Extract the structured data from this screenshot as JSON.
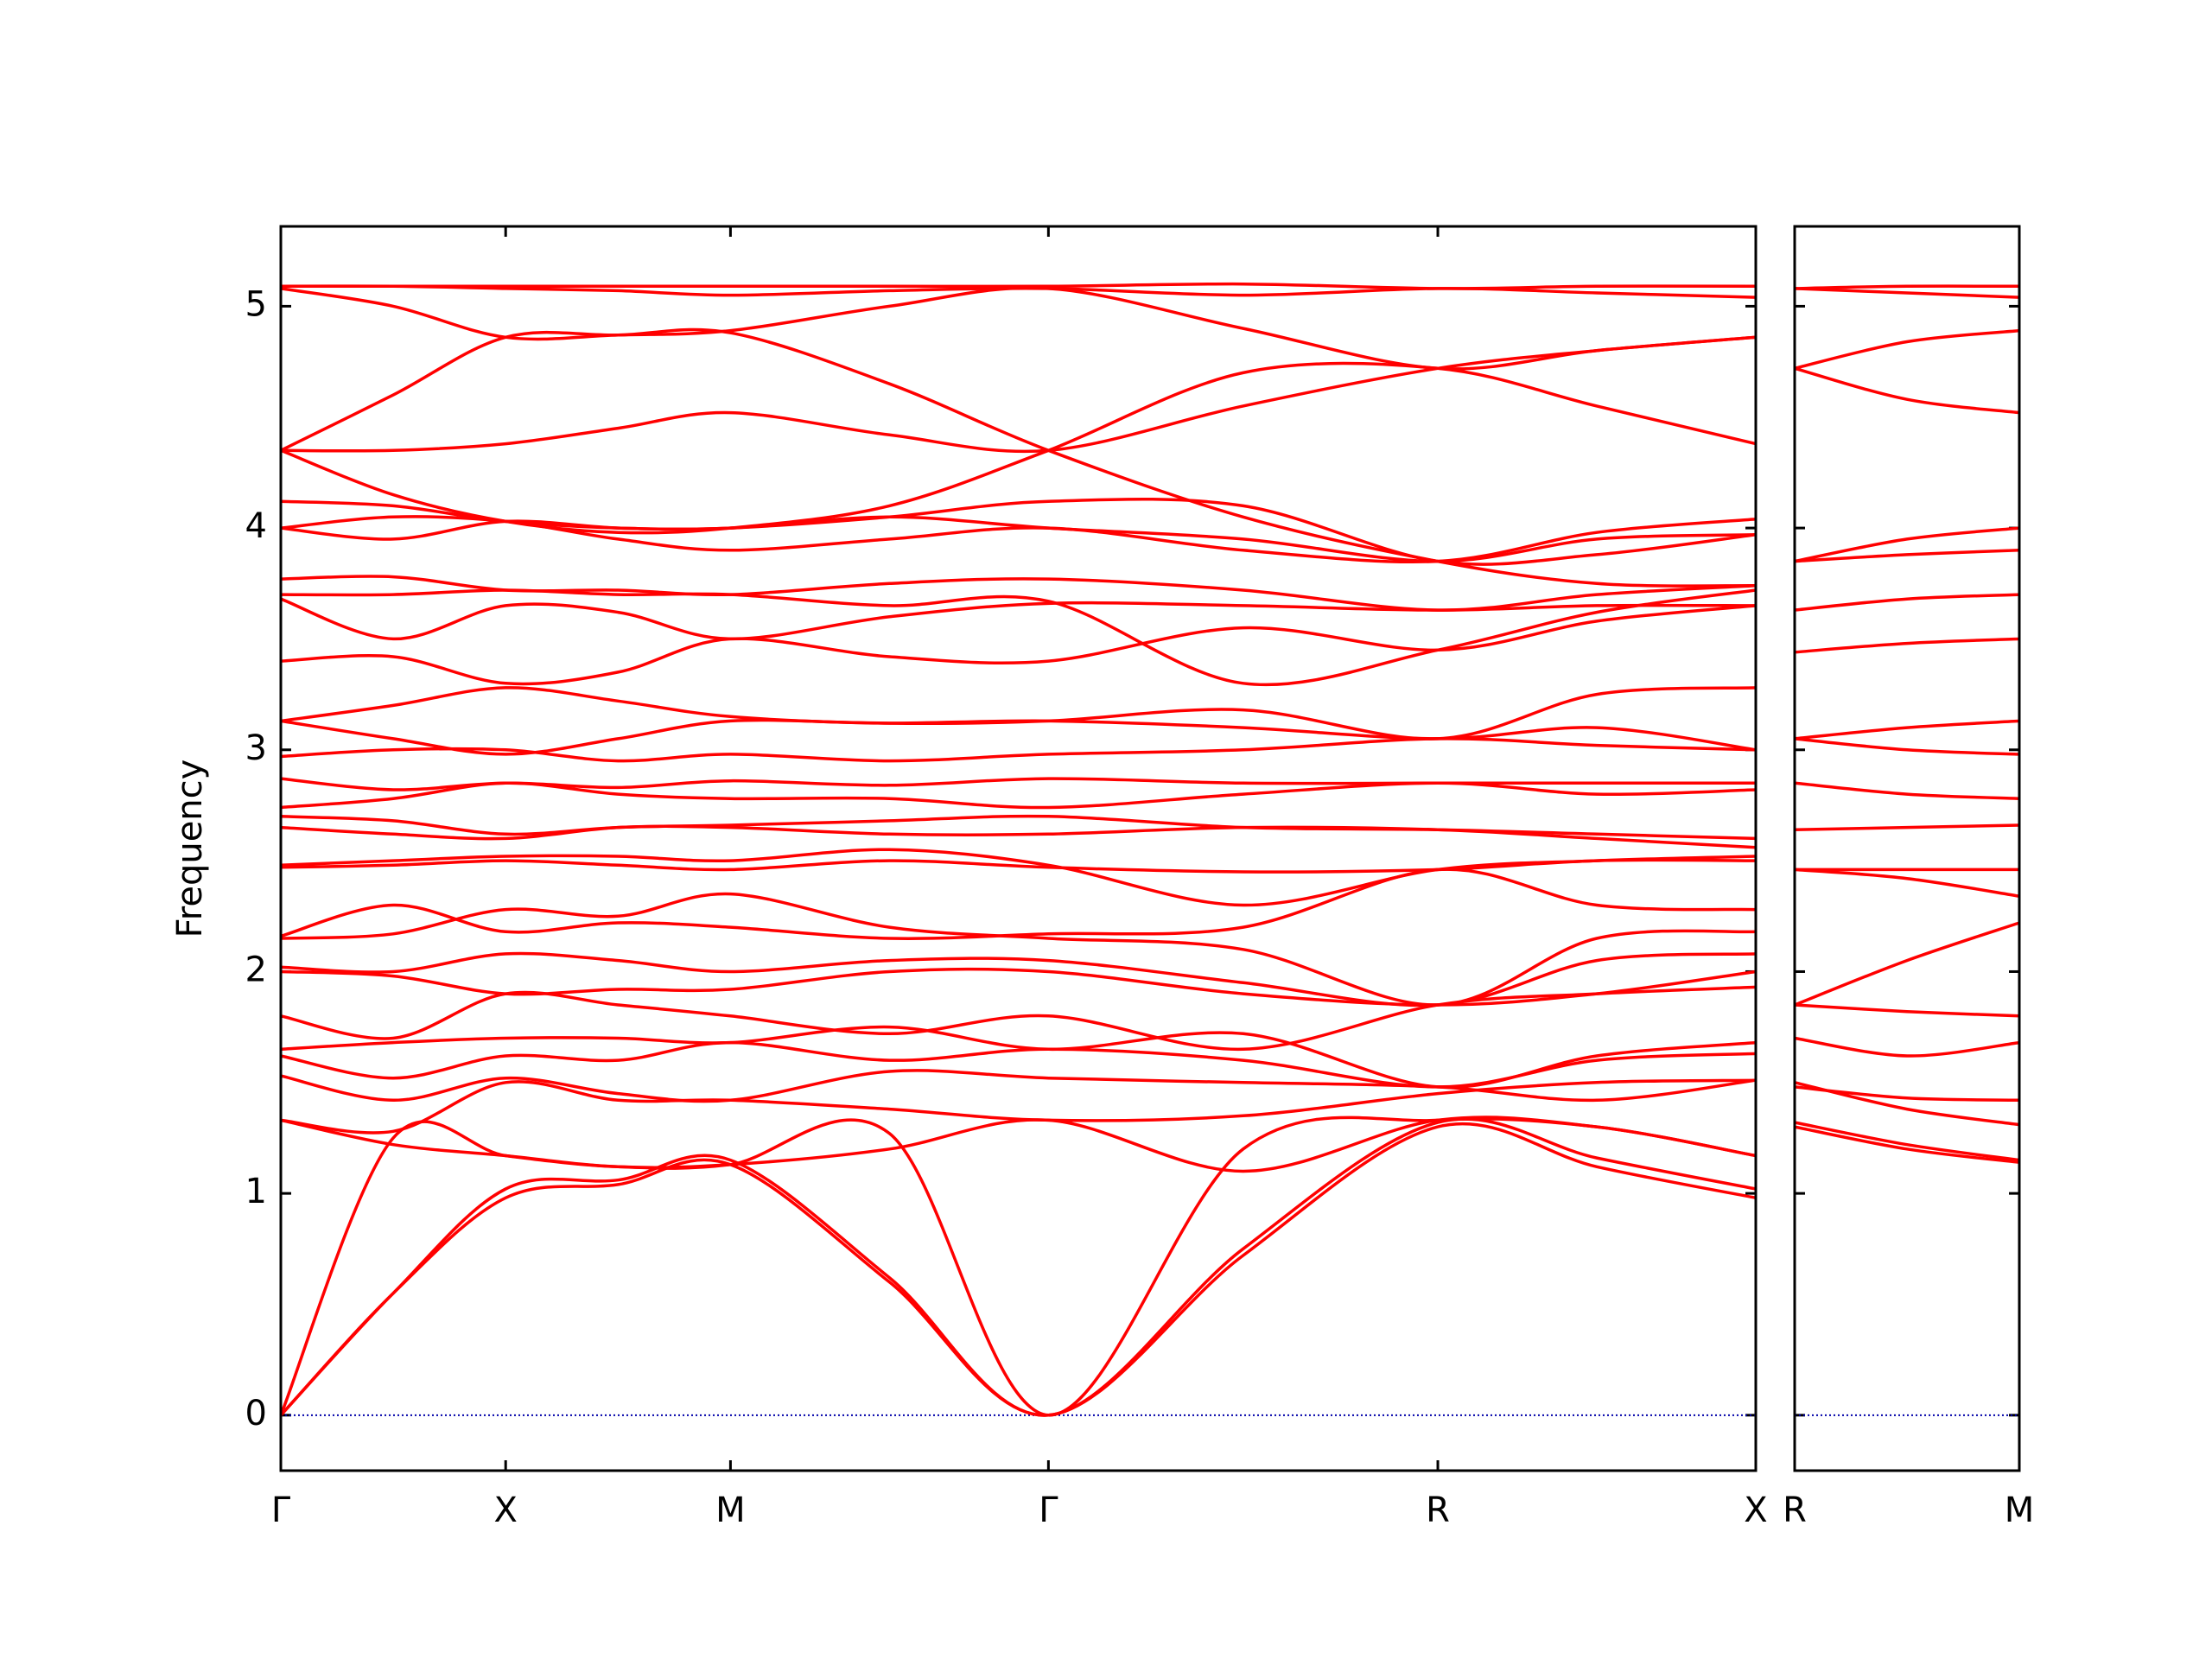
{
  "chart_data": [
    {
      "type": "line",
      "ylabel": "Frequency",
      "x": [
        0,
        0.25,
        0.5,
        0.75,
        1.0,
        1.3536,
        1.7071,
        2.1401,
        2.5731,
        2.9267,
        3.2802
      ],
      "xlim": [
        0,
        3.2802
      ],
      "xticks": [
        {
          "value": 0,
          "label": "Γ"
        },
        {
          "value": 0.5,
          "label": "X"
        },
        {
          "value": 1.0,
          "label": "M"
        },
        {
          "value": 1.7071,
          "label": "Γ"
        },
        {
          "value": 2.5731,
          "label": "R"
        },
        {
          "value": 3.2802,
          "label": "X"
        }
      ],
      "ylim": [
        -0.25,
        5.36
      ],
      "yticks": [
        0,
        1,
        2,
        3,
        4,
        5
      ],
      "show_ytick_labels": true,
      "hline": {
        "value": 0,
        "color": "#0000aa"
      },
      "series": [
        {
          "color": "#ff0000",
          "values": [
            0,
            0.55,
            0.98,
            1.04,
            1.13,
            0.6,
            0,
            0.72,
            1.3,
            1.12,
            0.98
          ]
        },
        {
          "color": "#ff0000",
          "values": [
            0,
            0.55,
            1.02,
            1.06,
            1.15,
            0.62,
            0,
            0.75,
            1.32,
            1.16,
            1.02
          ]
        },
        {
          "color": "#ff0000",
          "values": [
            0,
            1.25,
            1.17,
            1.12,
            1.13,
            1.27,
            0,
            1.2,
            1.33,
            1.3,
            1.17
          ]
        },
        {
          "color": "#ff0000",
          "values": [
            1.33,
            1.22,
            1.17,
            1.12,
            1.13,
            1.2,
            1.33,
            1.1,
            1.33,
            1.3,
            1.17
          ]
        },
        {
          "color": "#ff0000",
          "values": [
            1.33,
            1.28,
            1.5,
            1.42,
            1.42,
            1.38,
            1.33,
            1.35,
            1.45,
            1.5,
            1.51
          ]
        },
        {
          "color": "#ff0000",
          "values": [
            1.53,
            1.42,
            1.52,
            1.45,
            1.42,
            1.55,
            1.52,
            1.5,
            1.48,
            1.42,
            1.51
          ]
        },
        {
          "color": "#ff0000",
          "values": [
            1.62,
            1.52,
            1.62,
            1.6,
            1.68,
            1.6,
            1.65,
            1.6,
            1.48,
            1.6,
            1.63
          ]
        },
        {
          "color": "#ff0000",
          "values": [
            1.65,
            1.68,
            1.7,
            1.7,
            1.68,
            1.75,
            1.65,
            1.72,
            1.48,
            1.62,
            1.68
          ]
        },
        {
          "color": "#ff0000",
          "values": [
            1.8,
            1.7,
            1.9,
            1.85,
            1.8,
            1.72,
            1.8,
            1.65,
            1.85,
            1.9,
            1.93
          ]
        },
        {
          "color": "#ff0000",
          "values": [
            2.0,
            1.98,
            1.9,
            1.92,
            1.92,
            2.0,
            2.0,
            1.9,
            1.85,
            1.9,
            2.0
          ]
        },
        {
          "color": "#ff0000",
          "values": [
            2.02,
            2.0,
            2.08,
            2.05,
            2.0,
            2.05,
            2.05,
            1.95,
            1.85,
            2.05,
            2.08
          ]
        },
        {
          "color": "#ff0000",
          "values": [
            2.15,
            2.17,
            2.28,
            2.25,
            2.35,
            2.2,
            2.15,
            2.1,
            1.85,
            2.15,
            2.18
          ]
        },
        {
          "color": "#ff0000",
          "values": [
            2.16,
            2.3,
            2.18,
            2.22,
            2.2,
            2.15,
            2.17,
            2.2,
            2.46,
            2.3,
            2.28
          ]
        },
        {
          "color": "#ff0000",
          "values": [
            2.47,
            2.48,
            2.5,
            2.48,
            2.46,
            2.5,
            2.47,
            2.45,
            2.46,
            2.5,
            2.5
          ]
        },
        {
          "color": "#ff0000",
          "values": [
            2.48,
            2.5,
            2.52,
            2.52,
            2.5,
            2.55,
            2.48,
            2.3,
            2.46,
            2.5,
            2.52
          ]
        },
        {
          "color": "#ff0000",
          "values": [
            2.65,
            2.62,
            2.6,
            2.65,
            2.65,
            2.62,
            2.62,
            2.65,
            2.64,
            2.6,
            2.56
          ]
        },
        {
          "color": "#ff0000",
          "values": [
            2.7,
            2.68,
            2.62,
            2.65,
            2.66,
            2.68,
            2.7,
            2.65,
            2.64,
            2.62,
            2.6
          ]
        },
        {
          "color": "#ff0000",
          "values": [
            2.74,
            2.78,
            2.85,
            2.8,
            2.78,
            2.78,
            2.74,
            2.8,
            2.85,
            2.8,
            2.82
          ]
        },
        {
          "color": "#ff0000",
          "values": [
            2.87,
            2.82,
            2.85,
            2.83,
            2.86,
            2.84,
            2.87,
            2.85,
            2.85,
            2.85,
            2.85
          ]
        },
        {
          "color": "#ff0000",
          "values": [
            2.97,
            3.0,
            3.0,
            2.95,
            2.98,
            2.95,
            2.98,
            3.0,
            3.05,
            3.02,
            3.0
          ]
        },
        {
          "color": "#ff0000",
          "values": [
            3.13,
            3.05,
            2.98,
            3.05,
            3.13,
            3.12,
            3.13,
            3.1,
            3.05,
            3.1,
            3.0
          ]
        },
        {
          "color": "#ff0000",
          "values": [
            3.13,
            3.2,
            3.28,
            3.22,
            3.15,
            3.12,
            3.13,
            3.18,
            3.05,
            3.25,
            3.28
          ]
        },
        {
          "color": "#ff0000",
          "values": [
            3.4,
            3.42,
            3.3,
            3.35,
            3.5,
            3.42,
            3.4,
            3.55,
            3.45,
            3.58,
            3.65
          ]
        },
        {
          "color": "#ff0000",
          "values": [
            3.68,
            3.5,
            3.65,
            3.62,
            3.5,
            3.6,
            3.66,
            3.65,
            3.63,
            3.65,
            3.65
          ]
        },
        {
          "color": "#ff0000",
          "values": [
            3.7,
            3.7,
            3.72,
            3.7,
            3.7,
            3.65,
            3.67,
            3.3,
            3.45,
            3.62,
            3.72
          ]
        },
        {
          "color": "#ff0000",
          "values": [
            3.77,
            3.78,
            3.72,
            3.72,
            3.7,
            3.75,
            3.77,
            3.72,
            3.63,
            3.7,
            3.74
          ]
        },
        {
          "color": "#ff0000",
          "values": [
            4.0,
            3.95,
            4.03,
            4.0,
            4.0,
            4.05,
            4.0,
            3.95,
            3.85,
            3.95,
            3.97
          ]
        },
        {
          "color": "#ff0000",
          "values": [
            4.0,
            4.05,
            4.03,
            3.95,
            3.9,
            3.95,
            4.0,
            3.9,
            3.85,
            3.98,
            4.04
          ]
        },
        {
          "color": "#ff0000",
          "values": [
            4.12,
            4.1,
            4.03,
            4.0,
            4.0,
            4.05,
            4.12,
            4.1,
            3.85,
            3.88,
            3.97
          ]
        },
        {
          "color": "#ff0000",
          "values": [
            4.35,
            4.35,
            4.38,
            4.45,
            4.52,
            4.42,
            4.35,
            4.55,
            4.72,
            4.8,
            4.86
          ]
        },
        {
          "color": "#ff0000",
          "values": [
            4.35,
            4.15,
            4.03,
            3.98,
            4.0,
            4.1,
            4.35,
            4.7,
            4.72,
            4.55,
            4.38
          ]
        },
        {
          "color": "#ff0000",
          "values": [
            4.35,
            4.6,
            4.86,
            4.87,
            4.88,
            4.65,
            4.35,
            4.05,
            3.85,
            3.75,
            3.74
          ]
        },
        {
          "color": "#ff0000",
          "values": [
            5.08,
            5.0,
            4.86,
            4.87,
            4.89,
            5.0,
            5.08,
            4.9,
            4.72,
            4.8,
            4.86
          ]
        },
        {
          "color": "#ff0000",
          "values": [
            5.09,
            5.09,
            5.08,
            5.07,
            5.05,
            5.07,
            5.08,
            5.05,
            5.08,
            5.06,
            5.04
          ]
        },
        {
          "color": "#ff0000",
          "values": [
            5.09,
            5.09,
            5.09,
            5.09,
            5.09,
            5.09,
            5.09,
            5.1,
            5.08,
            5.09,
            5.09
          ]
        }
      ]
    },
    {
      "type": "line",
      "x": [
        0,
        0.25,
        0.5
      ],
      "xlim": [
        0,
        0.5
      ],
      "xticks": [
        {
          "value": 0,
          "label": "R"
        },
        {
          "value": 0.5,
          "label": "M"
        }
      ],
      "ylim": [
        -0.25,
        5.36
      ],
      "yticks": [
        0,
        1,
        2,
        3,
        4,
        5
      ],
      "show_ytick_labels": false,
      "hline": {
        "value": 0,
        "color": "#0000aa"
      },
      "series": [
        {
          "color": "#ff0000",
          "values": [
            1.3,
            1.2,
            1.14
          ]
        },
        {
          "color": "#ff0000",
          "values": [
            1.32,
            1.22,
            1.15
          ]
        },
        {
          "color": "#ff0000",
          "values": [
            1.48,
            1.43,
            1.42
          ]
        },
        {
          "color": "#ff0000",
          "values": [
            1.5,
            1.38,
            1.31
          ]
        },
        {
          "color": "#ff0000",
          "values": [
            1.7,
            1.62,
            1.68
          ]
        },
        {
          "color": "#ff0000",
          "values": [
            1.85,
            1.82,
            1.8
          ]
        },
        {
          "color": "#ff0000",
          "values": [
            1.85,
            2.05,
            2.22
          ]
        },
        {
          "color": "#ff0000",
          "values": [
            2.46,
            2.46,
            2.46
          ]
        },
        {
          "color": "#ff0000",
          "values": [
            2.46,
            2.42,
            2.34
          ]
        },
        {
          "color": "#ff0000",
          "values": [
            2.64,
            2.65,
            2.66
          ]
        },
        {
          "color": "#ff0000",
          "values": [
            2.85,
            2.8,
            2.78
          ]
        },
        {
          "color": "#ff0000",
          "values": [
            3.05,
            3.1,
            3.13
          ]
        },
        {
          "color": "#ff0000",
          "values": [
            3.05,
            3.0,
            2.98
          ]
        },
        {
          "color": "#ff0000",
          "values": [
            3.44,
            3.48,
            3.5
          ]
        },
        {
          "color": "#ff0000",
          "values": [
            3.63,
            3.68,
            3.7
          ]
        },
        {
          "color": "#ff0000",
          "values": [
            3.85,
            3.88,
            3.9
          ]
        },
        {
          "color": "#ff0000",
          "values": [
            3.85,
            3.95,
            4.0
          ]
        },
        {
          "color": "#ff0000",
          "values": [
            4.72,
            4.58,
            4.52
          ]
        },
        {
          "color": "#ff0000",
          "values": [
            4.72,
            4.84,
            4.89
          ]
        },
        {
          "color": "#ff0000",
          "values": [
            5.08,
            5.06,
            5.04
          ]
        },
        {
          "color": "#ff0000",
          "values": [
            5.08,
            5.09,
            5.09
          ]
        }
      ]
    }
  ]
}
